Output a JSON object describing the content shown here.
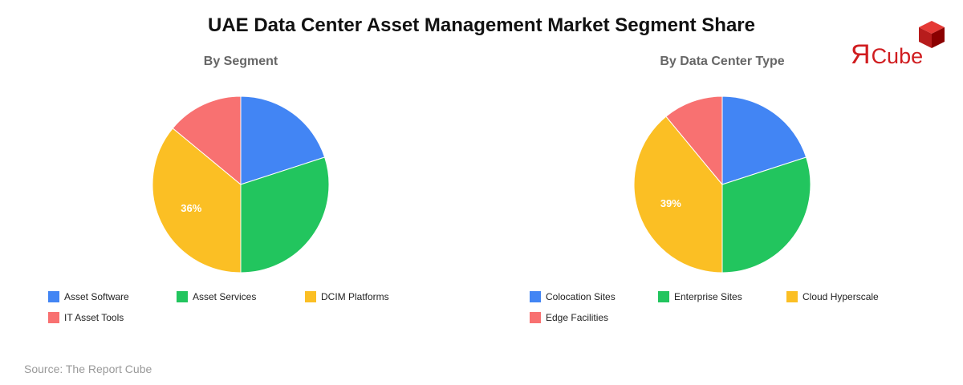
{
  "title": "UAE Data Center Asset Management Market Segment Share",
  "logo": {
    "text_r": "Я",
    "text_rest": "Cube"
  },
  "source": "Source: The Report Cube",
  "chart_data": [
    {
      "type": "pie",
      "title": "By Segment",
      "categories": [
        "Asset Software",
        "Asset Services",
        "DCIM Platforms",
        "IT Asset Tools"
      ],
      "values": [
        20,
        30,
        36,
        14
      ],
      "colors": [
        "#4285f4",
        "#22c55e",
        "#fbbf24",
        "#f87171"
      ],
      "labels_shown": [
        "",
        "",
        "36%",
        ""
      ],
      "legend_position": "bottom"
    },
    {
      "type": "pie",
      "title": "By Data Center Type",
      "categories": [
        "Colocation Sites",
        "Enterprise Sites",
        "Cloud Hyperscale",
        "Edge Facilities"
      ],
      "values": [
        20,
        30,
        39,
        11
      ],
      "colors": [
        "#4285f4",
        "#22c55e",
        "#fbbf24",
        "#f87171"
      ],
      "labels_shown": [
        "",
        "",
        "39%",
        ""
      ],
      "legend_position": "bottom"
    }
  ]
}
